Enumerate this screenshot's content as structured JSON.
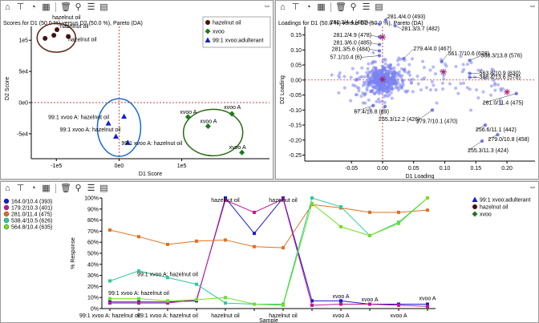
{
  "panels": {
    "scores": {
      "title": "Scores for D1 (50.0 %) versus D2 (50.0 %), Pareto (DA)",
      "xlabel": "D1 Score",
      "ylabel": "D2 Score",
      "legend": [
        "hazelnut oil",
        "xvoo",
        "99:1 xvoo:adulterant"
      ]
    },
    "loadings": {
      "title": "Loadings for D1 (50.0 %) versus D2 (50.0 %), Pareto (DA)",
      "xlabel": "D1 Loading",
      "ylabel": "D2 Loading"
    },
    "response": {
      "ylabel": "% Response",
      "xlabel": "Sample",
      "legend_vars": [
        "164.0/10.4 (393)",
        "179.2/10.3 (401)",
        "281.0/11.4 (475)",
        "538.4/10.5 (626)",
        "564.8/10.4 (635)"
      ],
      "legend_classes": [
        "99:1 xvoo:adulterant",
        "hazelnut oil",
        "xvoo"
      ]
    }
  },
  "icons": [
    "home-icon",
    "pin-icon",
    "scatter-tool-icon",
    "table-icon",
    "trash-icon",
    "magnify-icon",
    "list-icon",
    "grid-icon"
  ],
  "colors": {
    "hazelnut": "#4a0f0f",
    "xvoo": "#1a7a1a",
    "adulterant": "#1020d0",
    "ellipse_haz": "#5a2a14",
    "ellipse_adul": "#1a6ad0",
    "ellipse_xvoo": "#2a6a12",
    "loading_point": "#7a82f0",
    "loading_star": "#a02070"
  },
  "chart_data": [
    {
      "type": "scatter",
      "title": "Scores for D1 (50.0 %) versus D2 (50.0 %), Pareto (DA)",
      "xlabel": "D1 Score",
      "ylabel": "D2 Score",
      "xlim": [
        -140000,
        240000
      ],
      "ylim": [
        -90000,
        135000
      ],
      "xticks": [
        {
          "v": -100000,
          "label": "-1e5"
        },
        {
          "v": 0,
          "label": "0e0"
        },
        {
          "v": 100000,
          "label": "1e5"
        }
      ],
      "yticks": [
        {
          "v": -50000,
          "label": "-5e4"
        },
        {
          "v": 0,
          "label": "0e0"
        },
        {
          "v": 50000,
          "label": "5e4"
        },
        {
          "v": 100000,
          "label": "1e5"
        }
      ],
      "series": [
        {
          "name": "hazelnut oil",
          "color": "#4a0f0f",
          "marker": "circle",
          "points": [
            [
              -118000,
              103000
            ],
            [
              -104000,
              108000
            ],
            [
              -99000,
              117000
            ],
            [
              -81000,
              106000
            ]
          ],
          "labels": [
            "hazelnut oil",
            "hazelnut oil",
            "hazelnut oil"
          ]
        },
        {
          "name": "xvoo",
          "color": "#1a7a1a",
          "marker": "diamond",
          "points": [
            [
              110000,
              -23000
            ],
            [
              142000,
              -38000
            ],
            [
              180000,
              -18000
            ],
            [
              196000,
              -80000
            ]
          ],
          "labels": [
            "xvoo A",
            "xvoo A",
            "xvoo A",
            "xvoo A"
          ]
        },
        {
          "name": "99:1 xvoo:adulterant",
          "color": "#1020d0",
          "marker": "triangle",
          "points": [
            [
              -17000,
              -33000
            ],
            [
              -5000,
              -54000
            ],
            [
              14000,
              -64000
            ],
            [
              8000,
              -22000
            ]
          ],
          "labels": [
            "99:1 xvoo A: hazelnut oil",
            "99:1 xvoo A: hazelnut oil",
            "99:1 xvoo A: hazelnut oil"
          ]
        }
      ]
    },
    {
      "type": "scatter",
      "title": "Loadings for D1 (50.0 %) versus D2 (50.0 %), Pareto (DA)",
      "xlabel": "D1 Loading",
      "ylabel": "D2 Loading",
      "xlim": [
        -0.125,
        0.245
      ],
      "ylim": [
        -0.27,
        0.205
      ],
      "xticks": [
        -0.05,
        0,
        0.05,
        0.1,
        0.15,
        0.2
      ],
      "yticks": [
        -0.25,
        -0.2,
        -0.15,
        -0.1,
        -0.05,
        0,
        0.05,
        0.1,
        0.15
      ],
      "highlighted": [
        {
          "name": "281.4/4.0 (493)",
          "x": 0.005,
          "y": 0.199
        },
        {
          "name": "281.3/4.4 (483)",
          "x": -0.005,
          "y": 0.186
        },
        {
          "name": "281.3/3.7 (482)",
          "x": 0.02,
          "y": 0.181
        },
        {
          "name": "281.2/4.9 (478)",
          "x": -0.005,
          "y": 0.143
        },
        {
          "name": "281.3/6.0 (485)",
          "x": -0.005,
          "y": 0.118
        },
        {
          "name": "281.3/5.6 (484)",
          "x": -0.005,
          "y": 0.097
        },
        {
          "name": "57.1/10.4 (6)",
          "x": -0.005,
          "y": 0.081
        },
        {
          "name": "279.4/4.0 (467)",
          "x": 0.034,
          "y": 0.071
        },
        {
          "name": "561.7/10.6 (628)",
          "x": 0.095,
          "y": 0.061
        },
        {
          "name": "388.3/13.8 (576)",
          "x": 0.14,
          "y": 0.065
        },
        {
          "name": "563.8/10.9 (630)",
          "x": 0.14,
          "y": 0.022
        },
        {
          "name": "388.4/13.6 (578)",
          "x": 0.14,
          "y": 0.009
        },
        {
          "name": "57.4/16.8 (69)",
          "x": -0.015,
          "y": -0.085
        },
        {
          "name": "255.3/12.2 (426)",
          "x": 0.004,
          "y": -0.088
        },
        {
          "name": "279.7/10.1 (470)",
          "x": 0.08,
          "y": -0.1
        },
        {
          "name": "281.0/11.4 (475)",
          "x": 0.215,
          "y": -0.045
        },
        {
          "name": "256.6/11.1 (442)",
          "x": 0.165,
          "y": -0.15
        },
        {
          "name": "279.0/10.8 (458)",
          "x": 0.185,
          "y": -0.182
        },
        {
          "name": "255.3/11.3 (424)",
          "x": 0.16,
          "y": -0.203
        }
      ],
      "stars": [
        {
          "x": 0.0,
          "y": 0.143
        },
        {
          "x": 0.0,
          "y": 0.002
        },
        {
          "x": 0.098,
          "y": 0.027
        },
        {
          "x": 0.2,
          "y": -0.04
        }
      ]
    },
    {
      "type": "line",
      "ylabel": "% Response",
      "xlabel": "Sample",
      "ylim": [
        0,
        100
      ],
      "yticks": [
        0,
        10,
        20,
        30,
        40,
        50,
        60,
        70,
        80,
        90,
        100
      ],
      "categories": [
        "99:1 xvoo A: hazelnut oil",
        "",
        "99:1 xvoo A: hazelnut oil",
        "",
        "hazelnut oil",
        "",
        "hazelnut oil",
        "",
        "xvoo A",
        "",
        "xvoo A",
        ""
      ],
      "series": [
        {
          "name": "164.0/10.4 (393)",
          "color": "#1a1ad0",
          "values": [
            6,
            6,
            6,
            7,
            100,
            68,
            100,
            7,
            7,
            4,
            4,
            4
          ]
        },
        {
          "name": "179.2/10.3 (401)",
          "color": "#c01890",
          "values": [
            5,
            5,
            5,
            8,
            98,
            87,
            99,
            3,
            4,
            4,
            3,
            2
          ]
        },
        {
          "name": "281.0/11.4 (475)",
          "color": "#e07020",
          "values": [
            71,
            65,
            58,
            61,
            62,
            56,
            55,
            94,
            91,
            87,
            87,
            89
          ]
        },
        {
          "name": "538.4/10.5 (626)",
          "color": "#30c8a0",
          "values": [
            25,
            34,
            28,
            22,
            5,
            4,
            4,
            100,
            92,
            66,
            78,
            100
          ]
        },
        {
          "name": "564.8/10.4 (635)",
          "color": "#70e020",
          "values": [
            9,
            9,
            7,
            8,
            10,
            4,
            3,
            95,
            74,
            66,
            77,
            100
          ]
        }
      ],
      "annotations": [
        {
          "label": "hazelnut oil",
          "i": 4,
          "v": 95
        },
        {
          "label": "hazelnut oil",
          "i": 6,
          "v": 95
        },
        {
          "label": "99:1 xvoo A: hazelnut oil",
          "i": 2,
          "v": 28
        },
        {
          "label": "99:1 xvoo A: hazelnut oil",
          "i": 1,
          "v": 11
        },
        {
          "label": "xvoo A",
          "i": 8,
          "v": 8
        },
        {
          "label": "xvoo A",
          "i": 9,
          "v": 5
        },
        {
          "label": "xvoo A",
          "i": 11,
          "v": 6
        }
      ]
    }
  ]
}
